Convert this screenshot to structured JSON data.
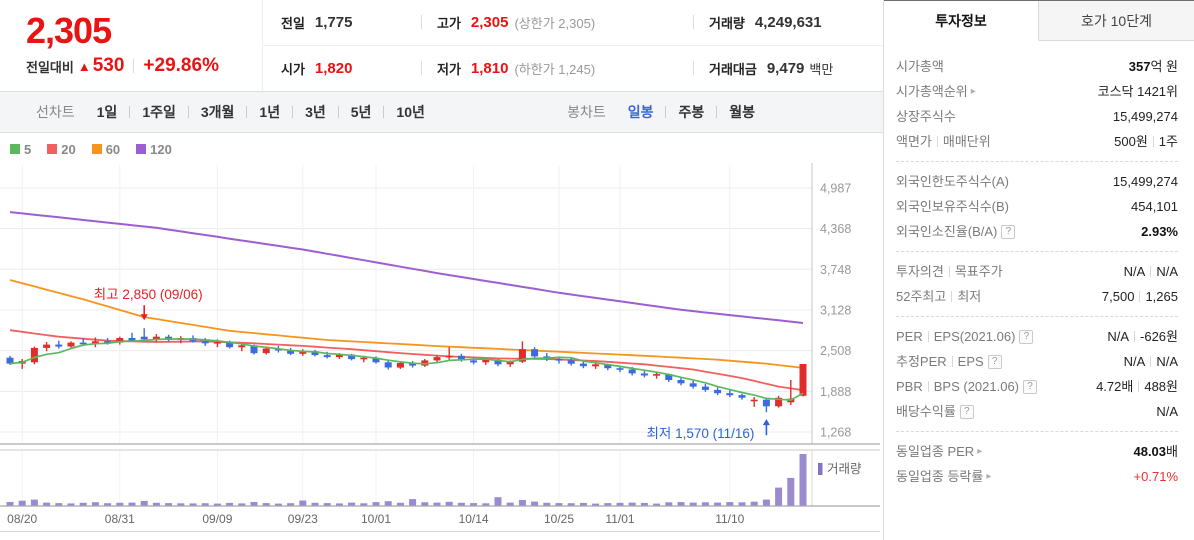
{
  "icons": {
    "up_triangle": "▲",
    "help": "?",
    "link_arrow": "▸"
  },
  "header": {
    "price": "2,305",
    "change_label": "전일대비",
    "change_value": "530",
    "change_pct": "+29.86%",
    "summary": {
      "prev_close": {
        "label": "전일",
        "value": "1,775",
        "red": false
      },
      "high": {
        "label": "고가",
        "value": "2,305",
        "red": true,
        "extra": "(상한가 2,305)"
      },
      "volume": {
        "label": "거래량",
        "value": "4,249,631",
        "red": false
      },
      "open": {
        "label": "시가",
        "value": "1,820",
        "red": true
      },
      "low": {
        "label": "저가",
        "value": "1,810",
        "red": true,
        "extra": "(하한가 1,245)"
      },
      "value_traded": {
        "label": "거래대금",
        "value": "9,479",
        "red": false,
        "unit": "백만"
      }
    }
  },
  "toolbar": {
    "line_group": {
      "label": "선차트",
      "items": [
        {
          "t": "1일"
        },
        {
          "t": "1주일"
        },
        {
          "t": "3개월"
        },
        {
          "t": "1년"
        },
        {
          "t": "3년"
        },
        {
          "t": "5년"
        },
        {
          "t": "10년"
        }
      ]
    },
    "candle_group": {
      "label": "봉차트",
      "items": [
        {
          "t": "일봉",
          "active": true
        },
        {
          "t": "주봉"
        },
        {
          "t": "월봉"
        }
      ]
    }
  },
  "chart_data": {
    "type": "candlestick",
    "legend": [
      {
        "label": "5",
        "color": "#5cb85c"
      },
      {
        "label": "20",
        "color": "#f15f5f"
      },
      {
        "label": "60",
        "color": "#f7941d"
      },
      {
        "label": "120",
        "color": "#9d5fd0"
      }
    ],
    "ylim": [
      1268,
      4987
    ],
    "y_ticks": [
      {
        "label": "4,987",
        "v": 4987
      },
      {
        "label": "4,368",
        "v": 4368
      },
      {
        "label": "3,748",
        "v": 3748
      },
      {
        "label": "3,128",
        "v": 3128
      },
      {
        "label": "2,508",
        "v": 2508
      },
      {
        "label": "1,888",
        "v": 1888
      },
      {
        "label": "1,268",
        "v": 1268
      }
    ],
    "x_ticks": [
      {
        "label": "08/20",
        "i": 1
      },
      {
        "label": "08/31",
        "i": 9
      },
      {
        "label": "09/09",
        "i": 17
      },
      {
        "label": "09/23",
        "i": 24
      },
      {
        "label": "10/01",
        "i": 30
      },
      {
        "label": "10/14",
        "i": 38
      },
      {
        "label": "10/25",
        "i": 45
      },
      {
        "label": "11/01",
        "i": 50
      },
      {
        "label": "11/10",
        "i": 59
      }
    ],
    "ohlcv": [
      [
        2400,
        2430,
        2290,
        2310,
        330000
      ],
      [
        2310,
        2380,
        2230,
        2350,
        430000
      ],
      [
        2330,
        2570,
        2300,
        2550,
        520000
      ],
      [
        2550,
        2640,
        2500,
        2600,
        280000
      ],
      [
        2600,
        2660,
        2540,
        2570,
        240000
      ],
      [
        2570,
        2650,
        2550,
        2630,
        210000
      ],
      [
        2630,
        2700,
        2580,
        2620,
        260000
      ],
      [
        2620,
        2710,
        2560,
        2650,
        310000
      ],
      [
        2650,
        2700,
        2600,
        2630,
        230000
      ],
      [
        2630,
        2720,
        2600,
        2700,
        260000
      ],
      [
        2700,
        2780,
        2650,
        2660,
        280000
      ],
      [
        2720,
        2850,
        2660,
        2680,
        420000
      ],
      [
        2680,
        2760,
        2640,
        2720,
        260000
      ],
      [
        2720,
        2750,
        2650,
        2670,
        240000
      ],
      [
        2670,
        2730,
        2620,
        2700,
        220000
      ],
      [
        2700,
        2740,
        2630,
        2650,
        210000
      ],
      [
        2650,
        2700,
        2580,
        2620,
        230000
      ],
      [
        2620,
        2680,
        2560,
        2640,
        200000
      ],
      [
        2640,
        2660,
        2540,
        2560,
        250000
      ],
      [
        2560,
        2620,
        2500,
        2590,
        210000
      ],
      [
        2590,
        2600,
        2450,
        2470,
        330000
      ],
      [
        2470,
        2560,
        2450,
        2540,
        240000
      ],
      [
        2540,
        2580,
        2480,
        2510,
        200000
      ],
      [
        2510,
        2550,
        2440,
        2460,
        230000
      ],
      [
        2460,
        2530,
        2430,
        2500,
        450000
      ],
      [
        2500,
        2520,
        2420,
        2440,
        260000
      ],
      [
        2440,
        2490,
        2390,
        2410,
        240000
      ],
      [
        2410,
        2470,
        2380,
        2450,
        210000
      ],
      [
        2450,
        2460,
        2360,
        2380,
        280000
      ],
      [
        2380,
        2430,
        2330,
        2400,
        220000
      ],
      [
        2400,
        2420,
        2310,
        2330,
        320000
      ],
      [
        2330,
        2360,
        2220,
        2250,
        390000
      ],
      [
        2250,
        2340,
        2230,
        2320,
        260000
      ],
      [
        2320,
        2350,
        2250,
        2280,
        560000
      ],
      [
        2280,
        2380,
        2260,
        2360,
        300000
      ],
      [
        2360,
        2440,
        2320,
        2410,
        280000
      ],
      [
        2410,
        2560,
        2350,
        2430,
        340000
      ],
      [
        2430,
        2460,
        2340,
        2360,
        260000
      ],
      [
        2360,
        2400,
        2300,
        2330,
        240000
      ],
      [
        2330,
        2390,
        2290,
        2370,
        220000
      ],
      [
        2370,
        2380,
        2270,
        2300,
        720000
      ],
      [
        2300,
        2360,
        2260,
        2340,
        280000
      ],
      [
        2340,
        2650,
        2320,
        2530,
        490000
      ],
      [
        2530,
        2560,
        2400,
        2420,
        360000
      ],
      [
        2420,
        2470,
        2350,
        2380,
        260000
      ],
      [
        2380,
        2420,
        2310,
        2360,
        240000
      ],
      [
        2360,
        2400,
        2280,
        2310,
        230000
      ],
      [
        2310,
        2350,
        2240,
        2270,
        250000
      ],
      [
        2270,
        2330,
        2230,
        2300,
        200000
      ],
      [
        2300,
        2310,
        2210,
        2240,
        240000
      ],
      [
        2240,
        2280,
        2180,
        2220,
        260000
      ],
      [
        2220,
        2260,
        2130,
        2160,
        280000
      ],
      [
        2160,
        2210,
        2100,
        2130,
        250000
      ],
      [
        2130,
        2180,
        2080,
        2150,
        200000
      ],
      [
        2150,
        2160,
        2030,
        2060,
        300000
      ],
      [
        2060,
        2100,
        1980,
        2010,
        320000
      ],
      [
        2010,
        2050,
        1930,
        1960,
        280000
      ],
      [
        1960,
        2000,
        1880,
        1910,
        300000
      ],
      [
        1910,
        1950,
        1830,
        1860,
        280000
      ],
      [
        1860,
        1900,
        1800,
        1830,
        320000
      ],
      [
        1830,
        1850,
        1760,
        1790,
        300000
      ],
      [
        1740,
        1800,
        1650,
        1760,
        350000
      ],
      [
        1760,
        1770,
        1570,
        1660,
        520000
      ],
      [
        1660,
        1820,
        1640,
        1790,
        1500000
      ],
      [
        1720,
        2060,
        1680,
        1775,
        2300000
      ],
      [
        1820,
        2305,
        1810,
        2305,
        4249631
      ]
    ],
    "moving_averages": [
      {
        "name": "5",
        "color": "#5cb85c",
        "window": 5
      },
      {
        "name": "20",
        "color": "#f15f5f",
        "points": [
          [
            0,
            2820
          ],
          [
            4,
            2720
          ],
          [
            8,
            2660
          ],
          [
            12,
            2640
          ],
          [
            16,
            2650
          ],
          [
            20,
            2620
          ],
          [
            24,
            2580
          ],
          [
            28,
            2530
          ],
          [
            32,
            2470
          ],
          [
            36,
            2420
          ],
          [
            40,
            2390
          ],
          [
            44,
            2380
          ],
          [
            48,
            2350
          ],
          [
            52,
            2300
          ],
          [
            56,
            2220
          ],
          [
            60,
            2090
          ],
          [
            63,
            1960
          ],
          [
            65,
            1905
          ]
        ]
      },
      {
        "name": "60",
        "color": "#f7941d",
        "points": [
          [
            0,
            3585
          ],
          [
            6,
            3290
          ],
          [
            11,
            3020
          ],
          [
            18,
            2810
          ],
          [
            26,
            2670
          ],
          [
            35,
            2578
          ],
          [
            44,
            2500
          ],
          [
            52,
            2430
          ],
          [
            58,
            2370
          ],
          [
            62,
            2310
          ],
          [
            65,
            2245
          ]
        ]
      },
      {
        "name": "120",
        "color": "#9d5fd0",
        "points": [
          [
            0,
            4620
          ],
          [
            12,
            4380
          ],
          [
            24,
            4050
          ],
          [
            35,
            3690
          ],
          [
            45,
            3390
          ],
          [
            55,
            3130
          ],
          [
            65,
            2930
          ]
        ]
      }
    ],
    "annotations": {
      "high": {
        "text": "최고 2,850 (09/06)",
        "i": 11,
        "v": 2850,
        "color": "#ec1d23"
      },
      "low": {
        "text": "최저 1,570 (11/16)",
        "i": 62,
        "v": 1570,
        "color": "#2f62d9"
      }
    },
    "volume": {
      "legend": "거래량",
      "color": "#9b8ad0"
    },
    "colors": {
      "up": "#e12c2c",
      "down": "#3a6be0",
      "grid": "#ececec",
      "axis_text": "#999",
      "date_text": "#666",
      "border": "#c4c4c4"
    }
  },
  "investor_info": {
    "tabs": [
      {
        "t": "투자정보",
        "active": true
      },
      {
        "t": "호가 10단계",
        "active": false
      }
    ],
    "sections": [
      [
        {
          "label": [
            {
              "t": "시가총액"
            }
          ],
          "value": [
            {
              "t": "357",
              "b": true
            },
            {
              "t": "억 원"
            }
          ]
        },
        {
          "label": [
            {
              "t": "시가총액순위"
            },
            {
              "arrow": true
            }
          ],
          "value": [
            {
              "t": "코스닥 1421위"
            }
          ],
          "link": true
        },
        {
          "label": [
            {
              "t": "상장주식수"
            }
          ],
          "value": [
            {
              "t": "15,499,274"
            }
          ]
        },
        {
          "label": [
            {
              "t": "액면가"
            },
            {
              "sep": true
            },
            {
              "t": "매매단위"
            }
          ],
          "value": [
            {
              "t": "500원"
            },
            {
              "sep": true
            },
            {
              "t": "1주"
            }
          ]
        }
      ],
      [
        {
          "label": [
            {
              "t": "외국인한도주식수(A)"
            }
          ],
          "value": [
            {
              "t": "15,499,274"
            }
          ]
        },
        {
          "label": [
            {
              "t": "외국인보유주식수(B)"
            }
          ],
          "value": [
            {
              "t": "454,101"
            }
          ]
        },
        {
          "label": [
            {
              "t": "외국인소진율(B/A)"
            },
            {
              "help": true
            }
          ],
          "value": [
            {
              "t": "2.93%",
              "b": true
            }
          ]
        }
      ],
      [
        {
          "label": [
            {
              "t": "투자의견"
            },
            {
              "sep": true
            },
            {
              "t": "목표주가"
            }
          ],
          "value": [
            {
              "t": "N/A"
            },
            {
              "sep": true
            },
            {
              "t": "N/A"
            }
          ]
        },
        {
          "label": [
            {
              "t": "52주최고"
            },
            {
              "sep": true
            },
            {
              "t": "최저"
            }
          ],
          "value": [
            {
              "t": "7,500"
            },
            {
              "sep": true
            },
            {
              "t": "1,265"
            }
          ]
        }
      ],
      [
        {
          "label": [
            {
              "t": "PER"
            },
            {
              "sep": true
            },
            {
              "t": "EPS(2021.06)"
            },
            {
              "help": true
            }
          ],
          "value": [
            {
              "t": "N/A"
            },
            {
              "sep": true
            },
            {
              "t": "-626원"
            }
          ]
        },
        {
          "label": [
            {
              "t": "추정PER"
            },
            {
              "sep": true
            },
            {
              "t": "EPS"
            },
            {
              "help": true
            }
          ],
          "value": [
            {
              "t": "N/A"
            },
            {
              "sep": true
            },
            {
              "t": "N/A"
            }
          ]
        },
        {
          "label": [
            {
              "t": "PBR"
            },
            {
              "sep": true
            },
            {
              "t": "BPS (2021.06)"
            },
            {
              "help": true
            }
          ],
          "value": [
            {
              "t": "4.72배"
            },
            {
              "sep": true
            },
            {
              "t": "488원"
            }
          ]
        },
        {
          "label": [
            {
              "t": "배당수익률"
            },
            {
              "help": true
            }
          ],
          "value": [
            {
              "t": "N/A"
            }
          ]
        }
      ],
      [
        {
          "label": [
            {
              "t": "동일업종 PER"
            },
            {
              "arrow": true
            }
          ],
          "value": [
            {
              "t": "48.03",
              "b": true
            },
            {
              "t": "배"
            }
          ],
          "link": true
        },
        {
          "label": [
            {
              "t": "동일업종 등락률"
            },
            {
              "arrow": true
            }
          ],
          "value": [
            {
              "t": "+0.71%",
              "red": true
            }
          ],
          "link": true
        }
      ]
    ]
  }
}
